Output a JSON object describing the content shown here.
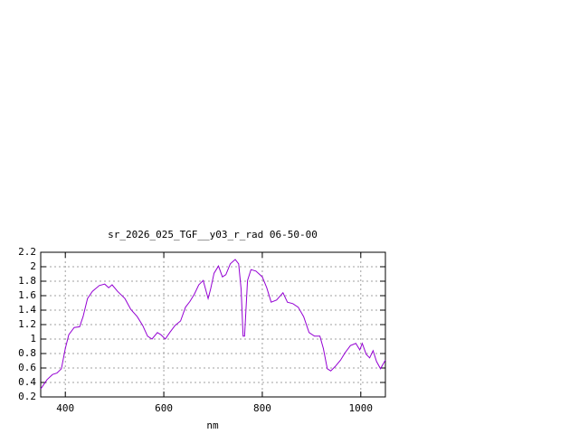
{
  "chart_data": {
    "type": "line",
    "title": "sr_2026_025_TGF__y03_r_rad 06-50-00",
    "xlabel": "nm",
    "x": [
      350,
      363,
      374,
      383,
      392,
      400,
      407,
      418,
      429,
      436,
      445,
      455,
      469,
      480,
      488,
      495,
      506,
      521,
      533,
      546,
      557,
      567,
      576,
      587,
      594,
      603,
      612,
      623,
      634,
      644,
      653,
      662,
      671,
      680,
      690,
      695,
      702,
      711,
      719,
      726,
      735,
      745,
      752,
      757,
      761,
      764,
      770,
      777,
      787,
      800,
      809,
      818,
      829,
      842,
      851,
      862,
      873,
      884,
      895,
      906,
      917,
      924,
      932,
      939,
      948,
      959,
      968,
      979,
      990,
      998,
      1003,
      1011,
      1018,
      1025,
      1032,
      1040,
      1050
    ],
    "values": [
      0.31,
      0.44,
      0.51,
      0.53,
      0.59,
      0.87,
      1.06,
      1.16,
      1.17,
      1.31,
      1.56,
      1.66,
      1.74,
      1.76,
      1.71,
      1.75,
      1.66,
      1.56,
      1.41,
      1.31,
      1.19,
      1.04,
      1.0,
      1.09,
      1.06,
      1.0,
      1.09,
      1.19,
      1.25,
      1.44,
      1.52,
      1.62,
      1.75,
      1.81,
      1.56,
      1.69,
      1.91,
      2.01,
      1.86,
      1.89,
      2.04,
      2.1,
      2.04,
      1.69,
      1.04,
      1.04,
      1.81,
      1.96,
      1.94,
      1.86,
      1.71,
      1.51,
      1.54,
      1.64,
      1.51,
      1.49,
      1.44,
      1.31,
      1.09,
      1.04,
      1.04,
      0.87,
      0.59,
      0.56,
      0.62,
      0.71,
      0.81,
      0.91,
      0.94,
      0.85,
      0.94,
      0.79,
      0.74,
      0.84,
      0.69,
      0.59,
      0.71
    ],
    "color": "#9400d3",
    "xlim": [
      350,
      1050
    ],
    "xticks": [
      400,
      600,
      800,
      1000
    ],
    "ylim": [
      0.2,
      2.2
    ],
    "yticks": [
      0.2,
      0.4,
      0.6,
      0.8,
      1,
      1.2,
      1.4,
      1.6,
      1.8,
      2,
      2.2
    ],
    "grid": true
  }
}
